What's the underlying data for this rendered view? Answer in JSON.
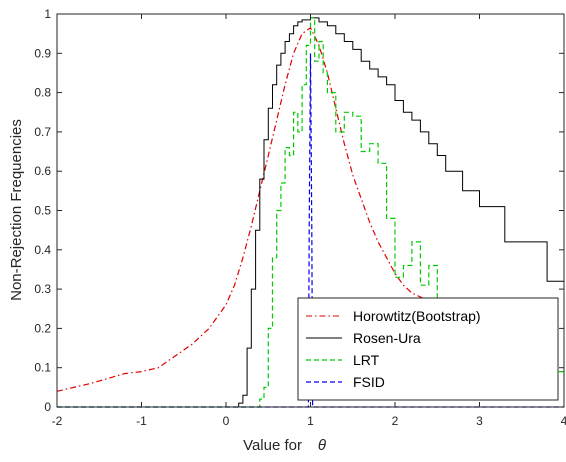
{
  "chart_data": {
    "type": "line",
    "title": "",
    "xlabel": "Value for",
    "xlabel_symbol": "θ",
    "ylabel": "Non-Rejection Frequencies",
    "xlim": [
      -2,
      4
    ],
    "ylim": [
      0,
      1
    ],
    "xticks": [
      -2,
      -1,
      0,
      1,
      2,
      3,
      4
    ],
    "yticks": [
      0,
      0.1,
      0.2,
      0.3,
      0.4,
      0.5,
      0.6,
      0.7,
      0.8,
      0.9,
      1
    ],
    "grid": false,
    "legend_position": "bottom-right",
    "series": [
      {
        "name": "Horowtitz(Bootstrap)",
        "color": "#dd0000",
        "style": "dashdot",
        "step": false,
        "points": [
          [
            -2,
            0.04
          ],
          [
            -1.6,
            0.06
          ],
          [
            -1.2,
            0.085
          ],
          [
            -1,
            0.09
          ],
          [
            -0.8,
            0.1
          ],
          [
            -0.6,
            0.13
          ],
          [
            -0.4,
            0.16
          ],
          [
            -0.2,
            0.2
          ],
          [
            0,
            0.26
          ],
          [
            0.1,
            0.31
          ],
          [
            0.2,
            0.38
          ],
          [
            0.3,
            0.46
          ],
          [
            0.4,
            0.55
          ],
          [
            0.5,
            0.64
          ],
          [
            0.6,
            0.73
          ],
          [
            0.7,
            0.82
          ],
          [
            0.8,
            0.9
          ],
          [
            0.9,
            0.95
          ],
          [
            1,
            0.965
          ],
          [
            1.1,
            0.92
          ],
          [
            1.2,
            0.85
          ],
          [
            1.3,
            0.76
          ],
          [
            1.4,
            0.67
          ],
          [
            1.5,
            0.59
          ],
          [
            1.6,
            0.53
          ],
          [
            1.7,
            0.47
          ],
          [
            1.8,
            0.42
          ],
          [
            1.9,
            0.38
          ],
          [
            2,
            0.34
          ],
          [
            2.1,
            0.31
          ],
          [
            2.2,
            0.29
          ],
          [
            2.4,
            0.27
          ],
          [
            2.6,
            0.23
          ]
        ]
      },
      {
        "name": "Rosen-Ura",
        "color": "#000000",
        "style": "solid",
        "step": true,
        "points": [
          [
            -2,
            0
          ],
          [
            0.1,
            0
          ],
          [
            0.15,
            0.01
          ],
          [
            0.2,
            0.03
          ],
          [
            0.25,
            0.15
          ],
          [
            0.3,
            0.3
          ],
          [
            0.35,
            0.45
          ],
          [
            0.4,
            0.58
          ],
          [
            0.45,
            0.68
          ],
          [
            0.5,
            0.76
          ],
          [
            0.55,
            0.82
          ],
          [
            0.6,
            0.87
          ],
          [
            0.65,
            0.9
          ],
          [
            0.7,
            0.93
          ],
          [
            0.75,
            0.95
          ],
          [
            0.8,
            0.97
          ],
          [
            0.85,
            0.98
          ],
          [
            0.9,
            0.985
          ],
          [
            1,
            0.99
          ],
          [
            1.1,
            0.98
          ],
          [
            1.2,
            0.97
          ],
          [
            1.3,
            0.95
          ],
          [
            1.4,
            0.93
          ],
          [
            1.5,
            0.91
          ],
          [
            1.6,
            0.88
          ],
          [
            1.7,
            0.86
          ],
          [
            1.8,
            0.84
          ],
          [
            1.9,
            0.82
          ],
          [
            2,
            0.78
          ],
          [
            2.1,
            0.75
          ],
          [
            2.2,
            0.73
          ],
          [
            2.3,
            0.7
          ],
          [
            2.4,
            0.67
          ],
          [
            2.5,
            0.64
          ],
          [
            2.6,
            0.6
          ],
          [
            2.8,
            0.55
          ],
          [
            3,
            0.51
          ],
          [
            3.3,
            0.42
          ],
          [
            3.8,
            0.32
          ],
          [
            4,
            0.32
          ]
        ]
      },
      {
        "name": "LRT",
        "color": "#00cc00",
        "style": "dashed",
        "step": true,
        "points": [
          [
            -2,
            0
          ],
          [
            0.35,
            0
          ],
          [
            0.4,
            0.02
          ],
          [
            0.45,
            0.05
          ],
          [
            0.5,
            0.2
          ],
          [
            0.55,
            0.38
          ],
          [
            0.6,
            0.5
          ],
          [
            0.65,
            0.57
          ],
          [
            0.7,
            0.66
          ],
          [
            0.75,
            0.64
          ],
          [
            0.8,
            0.75
          ],
          [
            0.85,
            0.7
          ],
          [
            0.9,
            0.82
          ],
          [
            0.95,
            0.92
          ],
          [
            1,
            0.99
          ],
          [
            1.05,
            0.88
          ],
          [
            1.1,
            0.93
          ],
          [
            1.15,
            0.85
          ],
          [
            1.2,
            0.8
          ],
          [
            1.3,
            0.7
          ],
          [
            1.4,
            0.75
          ],
          [
            1.5,
            0.74
          ],
          [
            1.6,
            0.65
          ],
          [
            1.7,
            0.67
          ],
          [
            1.8,
            0.62
          ],
          [
            1.9,
            0.48
          ],
          [
            2,
            0.33
          ],
          [
            2.1,
            0.36
          ],
          [
            2.2,
            0.42
          ],
          [
            2.3,
            0.31
          ],
          [
            2.4,
            0.36
          ],
          [
            2.5,
            0.24
          ],
          [
            2.6,
            0.19
          ],
          [
            2.8,
            0.14
          ],
          [
            3,
            0.12
          ],
          [
            3.3,
            0.1
          ],
          [
            3.6,
            0.09
          ],
          [
            4,
            0.08
          ]
        ]
      },
      {
        "name": "FSID",
        "color": "#0000ee",
        "style": "dashed",
        "step": false,
        "points": [
          [
            -2,
            0
          ],
          [
            0.975,
            0
          ],
          [
            0.985,
            0.45
          ],
          [
            1,
            0.9
          ],
          [
            1.015,
            0.45
          ],
          [
            1.025,
            0
          ],
          [
            4,
            0
          ]
        ]
      }
    ]
  }
}
